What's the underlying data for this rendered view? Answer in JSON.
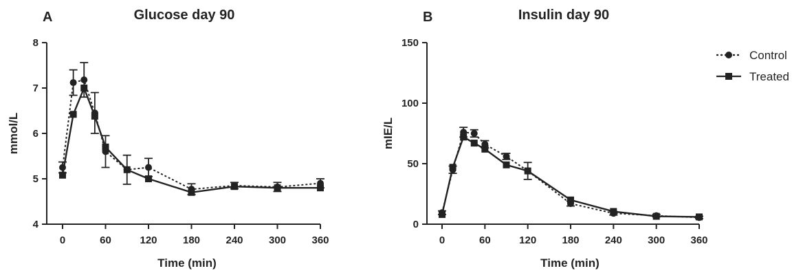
{
  "chart_data": [
    {
      "type": "line",
      "letter": "A",
      "title": "Glucose day 90",
      "xlabel": "Time (min)",
      "ylabel": "mmol/L",
      "xlim": [
        0,
        360
      ],
      "ylim": [
        4,
        8
      ],
      "xticks": [
        0,
        60,
        120,
        180,
        240,
        300,
        360
      ],
      "yticks": [
        4,
        5,
        6,
        7,
        8
      ],
      "grid": false,
      "x": [
        0,
        15,
        30,
        45,
        60,
        90,
        120,
        180,
        240,
        300,
        360
      ],
      "series": [
        {
          "name": "Control",
          "style": "dotted",
          "marker": "circle",
          "values": [
            5.25,
            7.12,
            7.18,
            6.45,
            5.6,
            5.2,
            5.25,
            4.77,
            4.85,
            4.82,
            4.9
          ],
          "err": [
            0.12,
            0.28,
            0.38,
            0.45,
            0.35,
            0.32,
            0.2,
            0.12,
            0.07,
            0.1,
            0.1
          ]
        },
        {
          "name": "Treated",
          "style": "solid",
          "marker": "square",
          "values": [
            5.08,
            6.42,
            7.0,
            6.38,
            5.7,
            5.2,
            5.0,
            4.7,
            4.83,
            4.8,
            4.8
          ]
        }
      ]
    },
    {
      "type": "line",
      "letter": "B",
      "title": "Insulin day 90",
      "xlabel": "Time (min)",
      "ylabel": "mIE/L",
      "xlim": [
        0,
        360
      ],
      "ylim": [
        0,
        150
      ],
      "xticks": [
        0,
        60,
        120,
        180,
        240,
        300,
        360
      ],
      "yticks": [
        0,
        50,
        100,
        150
      ],
      "grid": false,
      "legend_position": "top-right",
      "x": [
        0,
        15,
        30,
        45,
        60,
        90,
        120,
        180,
        240,
        300,
        360
      ],
      "series": [
        {
          "name": "Control",
          "style": "dotted",
          "marker": "circle",
          "values": [
            9.5,
            45,
            76,
            75,
            66,
            56,
            44,
            17,
            9,
            7,
            5.5
          ],
          "err": [
            1.5,
            3,
            4,
            3,
            3,
            2.5,
            7,
            2,
            1.5,
            1,
            1
          ]
        },
        {
          "name": "Treated",
          "style": "solid",
          "marker": "square",
          "values": [
            8,
            47,
            72,
            67,
            62,
            49,
            44,
            20,
            10.5,
            6.5,
            6
          ]
        }
      ]
    }
  ]
}
